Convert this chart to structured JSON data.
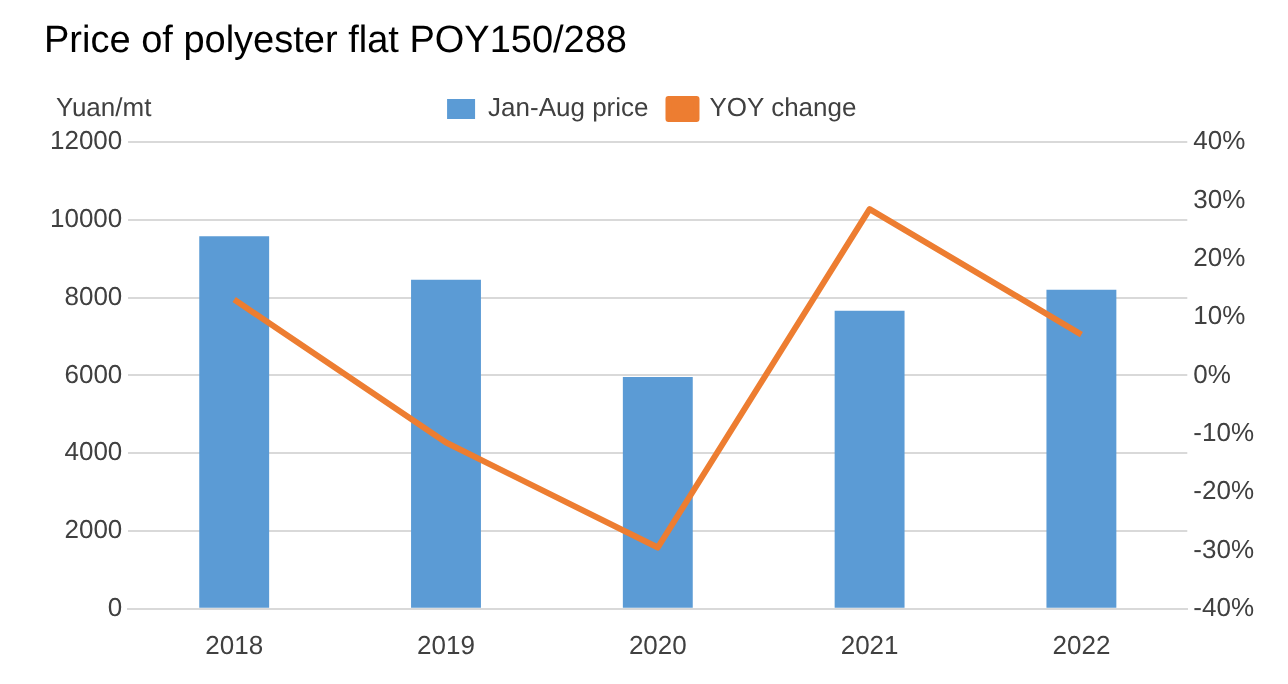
{
  "chart_data": {
    "type": "bar",
    "title": "Price of polyester flat POY150/288",
    "ylabel": "Yuan/mt",
    "categories": [
      "2018",
      "2019",
      "2020",
      "2021",
      "2022"
    ],
    "series": [
      {
        "name": "Jan-Aug price",
        "color": "#5b9bd5",
        "values": [
          9580,
          8460,
          5960,
          7660,
          8200
        ]
      },
      {
        "name": "YOY change",
        "type": "line",
        "axis": "y2",
        "color": "#ed7d31",
        "marker": "none",
        "values": [
          13,
          -11.5,
          -29.5,
          28.5,
          7
        ]
      }
    ],
    "ylim": [
      0,
      12000
    ],
    "yticks": [
      0,
      2000,
      4000,
      6000,
      8000,
      10000,
      12000
    ],
    "y2lim": [
      -40,
      40
    ],
    "y2ticks": [
      {
        "value": -40,
        "label": "-40%"
      },
      {
        "value": -30,
        "label": "-30%"
      },
      {
        "value": -20,
        "label": "-20%"
      },
      {
        "value": -10,
        "label": "-10%"
      },
      {
        "value": 0,
        "label": "0%"
      },
      {
        "value": 10,
        "label": "10%"
      },
      {
        "value": 20,
        "label": "20%"
      },
      {
        "value": 30,
        "label": "30%"
      },
      {
        "value": 40,
        "label": "40%"
      }
    ],
    "grid": "y",
    "legend": "top"
  }
}
